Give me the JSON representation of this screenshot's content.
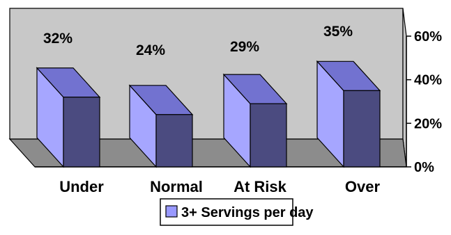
{
  "chart_data": {
    "type": "bar",
    "style": "3d-column",
    "categories": [
      "Under",
      "Normal",
      "At Risk",
      "Over"
    ],
    "series": [
      {
        "name": "3+ Servings per day",
        "values": [
          32,
          24,
          29,
          35
        ]
      }
    ],
    "data_labels": [
      "32%",
      "24%",
      "29%",
      "35%"
    ],
    "y_ticks": [
      "0%",
      "20%",
      "40%",
      "60%"
    ],
    "ylim": [
      0,
      60
    ],
    "y_axis_side": "right",
    "grid": false,
    "legend_position": "bottom-left",
    "colors": {
      "bar_front": "#4B4B80",
      "bar_side": "#A6A6FF",
      "bar_top": "#7272D0",
      "back_wall": "#C8C8C8",
      "floor": "#8C8C8C",
      "legend_swatch": "#9999FF"
    }
  }
}
